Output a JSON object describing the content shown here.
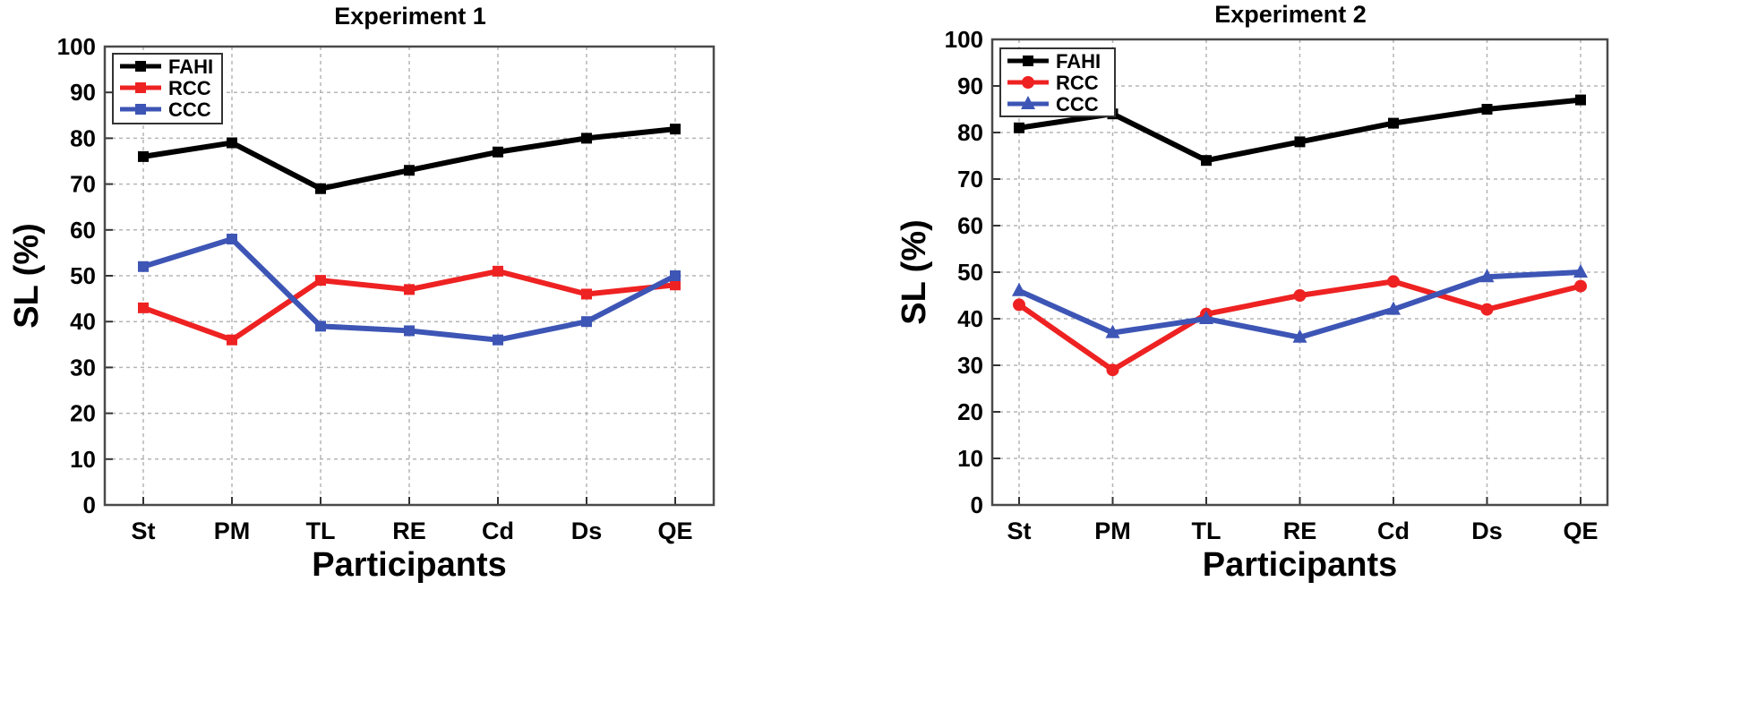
{
  "chart_data": [
    {
      "type": "line",
      "title": "Experiment 1",
      "xlabel": "Participants",
      "ylabel": "SL (%)",
      "ylim": [
        0,
        100
      ],
      "yticks": [
        0,
        10,
        20,
        30,
        40,
        50,
        60,
        70,
        80,
        90,
        100
      ],
      "categories": [
        "St",
        "PM",
        "TL",
        "RE",
        "Cd",
        "Ds",
        "QE"
      ],
      "grid": true,
      "legend_position": "top-left",
      "series": [
        {
          "name": "FAHI",
          "color": "#000000",
          "marker": "square",
          "values": [
            76,
            79,
            69,
            73,
            77,
            80,
            82
          ]
        },
        {
          "name": "RCC",
          "color": "#ee2222",
          "marker": "square",
          "values": [
            43,
            36,
            49,
            47,
            51,
            46,
            48
          ]
        },
        {
          "name": "CCC",
          "color": "#3d55b5",
          "marker": "square",
          "values": [
            52,
            58,
            39,
            38,
            36,
            40,
            50
          ]
        }
      ]
    },
    {
      "type": "line",
      "title": "Experiment 2",
      "xlabel": "Participants",
      "ylabel": "SL (%)",
      "ylim": [
        0,
        100
      ],
      "yticks": [
        0,
        10,
        20,
        30,
        40,
        50,
        60,
        70,
        80,
        90,
        100
      ],
      "categories": [
        "St",
        "PM",
        "TL",
        "RE",
        "Cd",
        "Ds",
        "QE"
      ],
      "grid": true,
      "legend_position": "top-left",
      "series": [
        {
          "name": "FAHI",
          "color": "#000000",
          "marker": "square",
          "values": [
            81,
            84,
            74,
            78,
            82,
            85,
            87
          ]
        },
        {
          "name": "RCC",
          "color": "#ee2222",
          "marker": "circle",
          "values": [
            43,
            29,
            41,
            45,
            48,
            42,
            47
          ]
        },
        {
          "name": "CCC",
          "color": "#3d55b5",
          "marker": "triangle",
          "values": [
            46,
            37,
            40,
            36,
            42,
            49,
            50
          ]
        }
      ]
    }
  ]
}
